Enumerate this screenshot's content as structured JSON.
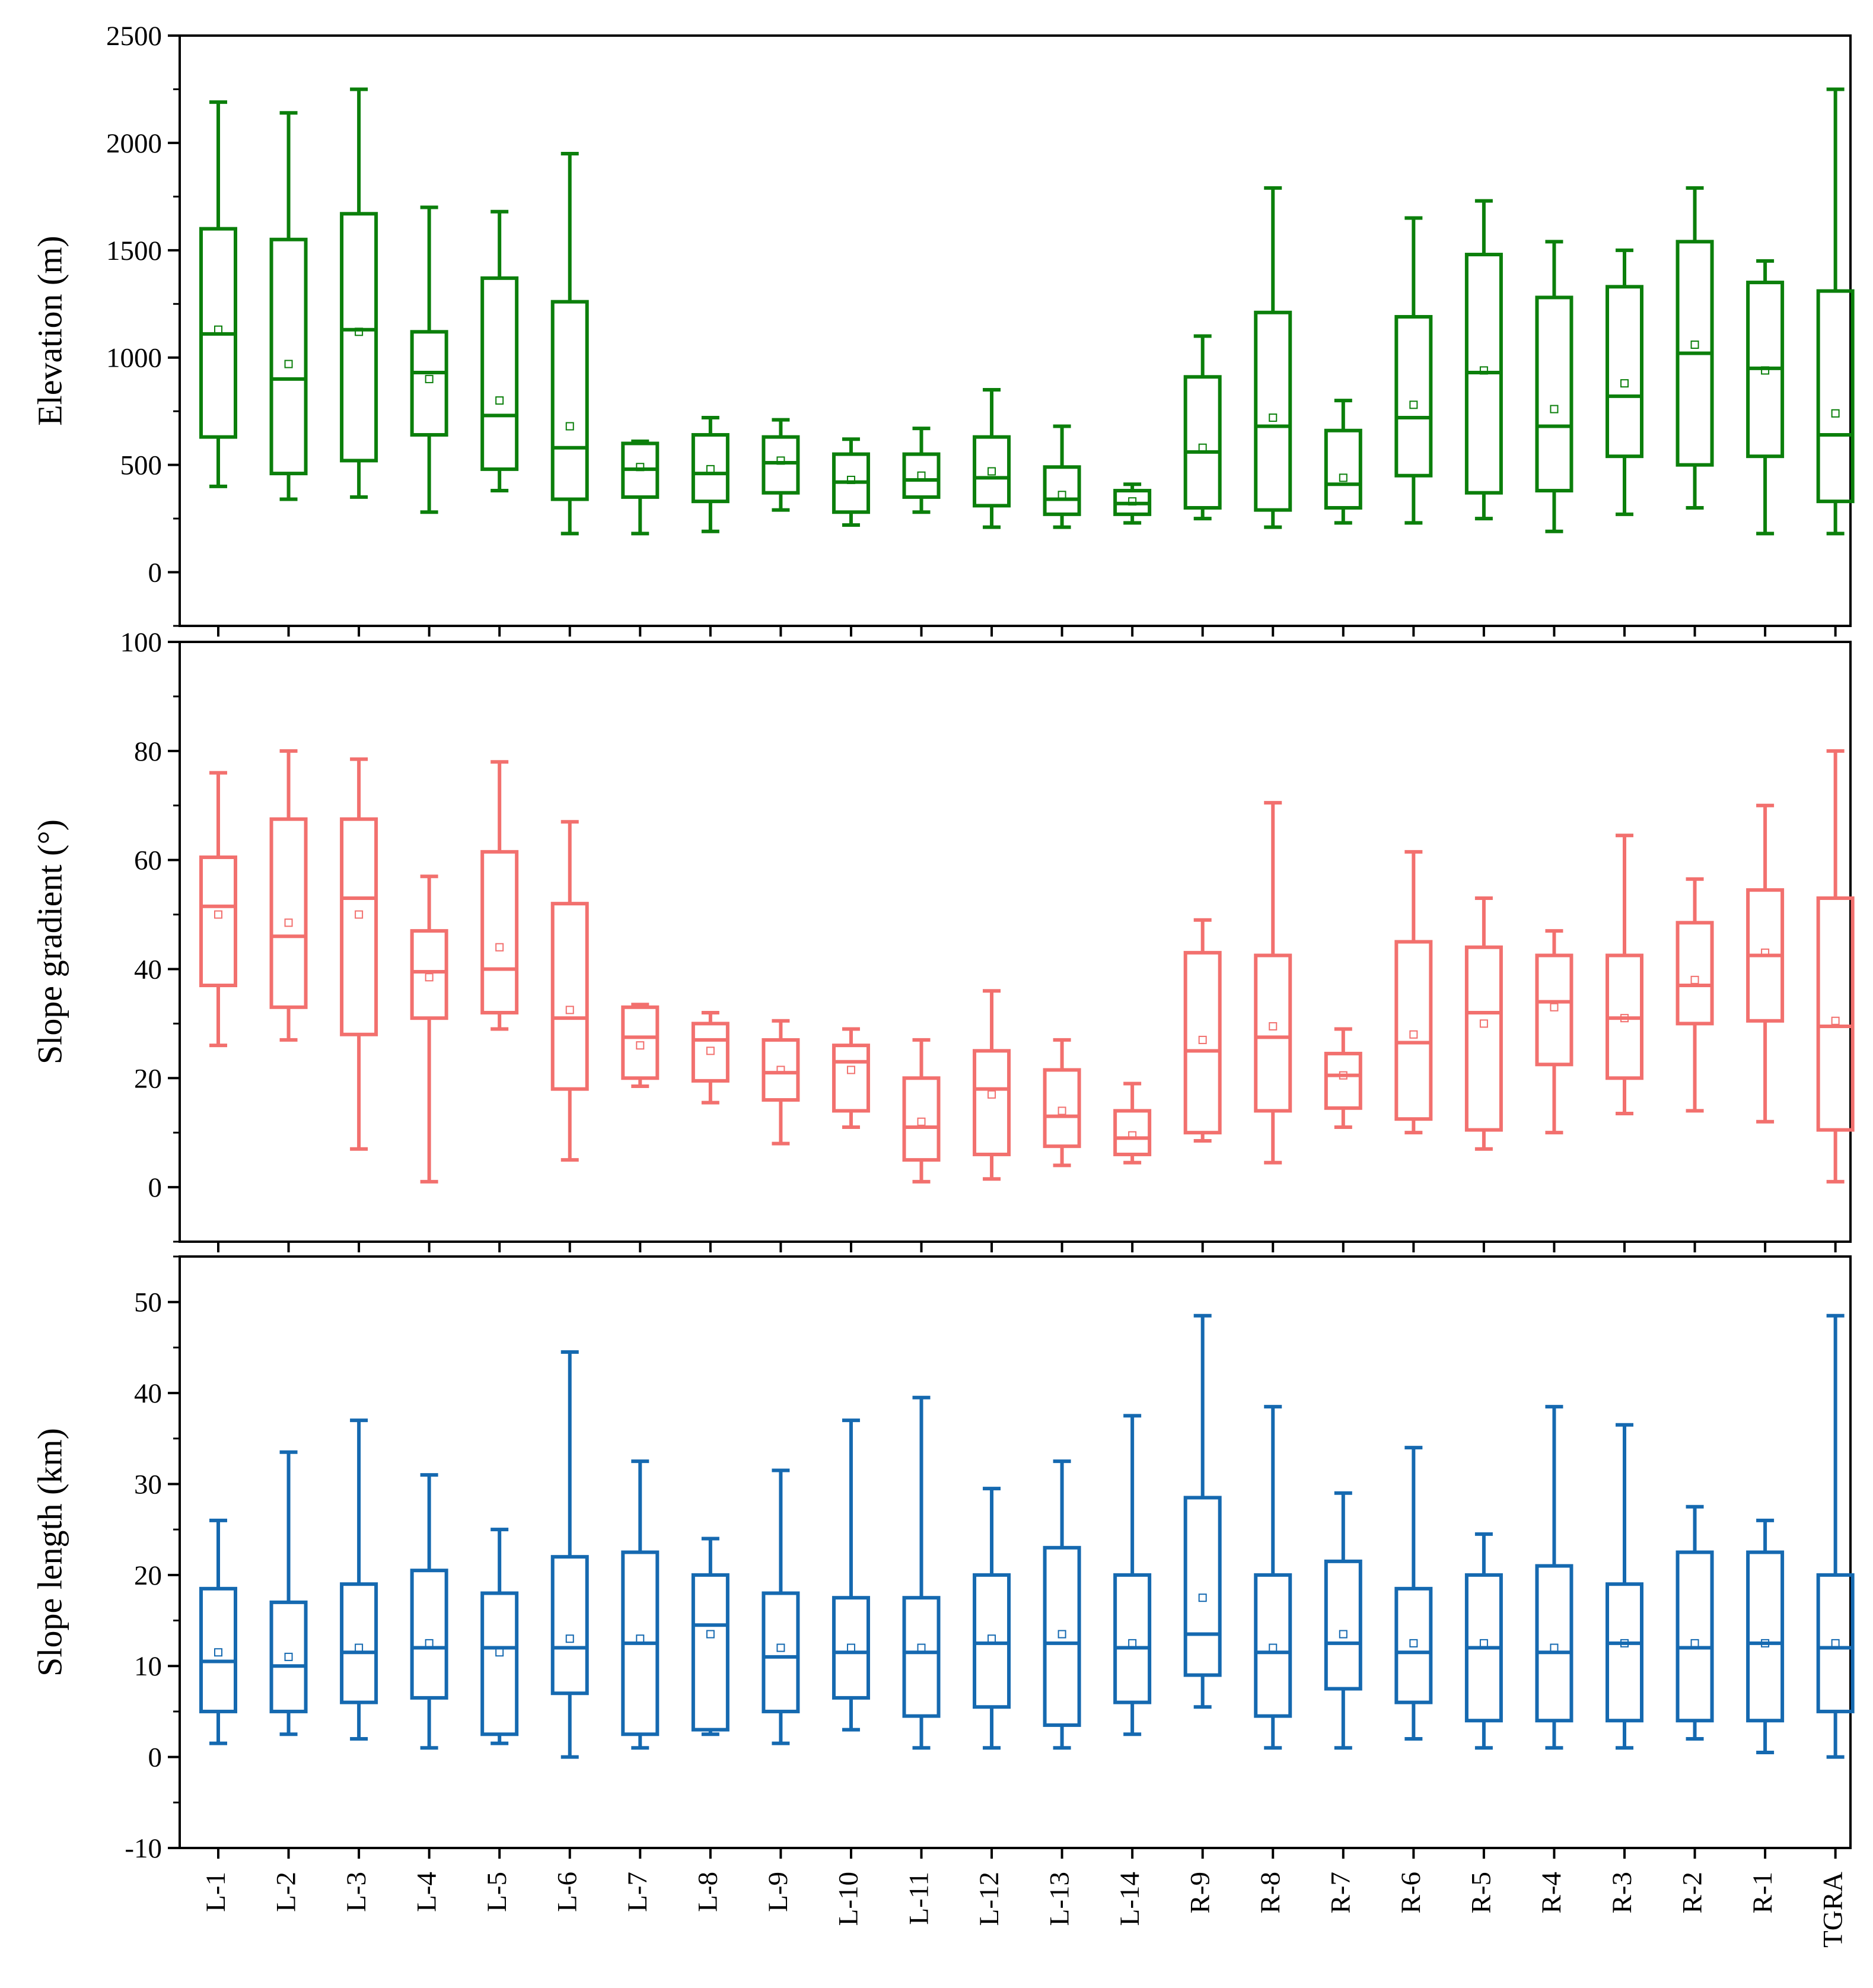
{
  "chart_data": [
    {
      "type": "box",
      "ylabel": "Elevation (m)",
      "ylim": [
        -250,
        2500
      ],
      "yticks": [
        0,
        500,
        1000,
        1500,
        2000,
        2500
      ],
      "color": "#0b7f0b",
      "categories": [
        "L-1",
        "L-2",
        "L-3",
        "L-4",
        "L-5",
        "L-6",
        "L-7",
        "L-8",
        "L-9",
        "L-10",
        "L-11",
        "L-12",
        "L-13",
        "L-14",
        "R-9",
        "R-8",
        "R-7",
        "R-6",
        "R-5",
        "R-4",
        "R-3",
        "R-2",
        "R-1",
        "TGRA"
      ],
      "boxes": [
        {
          "min": 400,
          "q1": 630,
          "median": 1110,
          "q3": 1600,
          "max": 2190,
          "mean": 1130
        },
        {
          "min": 340,
          "q1": 460,
          "median": 900,
          "q3": 1550,
          "max": 2140,
          "mean": 970
        },
        {
          "min": 350,
          "q1": 520,
          "median": 1130,
          "q3": 1670,
          "max": 2250,
          "mean": 1120
        },
        {
          "min": 280,
          "q1": 640,
          "median": 930,
          "q3": 1120,
          "max": 1700,
          "mean": 900
        },
        {
          "min": 380,
          "q1": 480,
          "median": 730,
          "q3": 1370,
          "max": 1680,
          "mean": 800
        },
        {
          "min": 180,
          "q1": 340,
          "median": 580,
          "q3": 1260,
          "max": 1950,
          "mean": 680
        },
        {
          "min": 180,
          "q1": 350,
          "median": 480,
          "q3": 600,
          "max": 610,
          "mean": 490
        },
        {
          "min": 190,
          "q1": 330,
          "median": 460,
          "q3": 640,
          "max": 720,
          "mean": 480
        },
        {
          "min": 290,
          "q1": 370,
          "median": 510,
          "q3": 630,
          "max": 710,
          "mean": 520
        },
        {
          "min": 220,
          "q1": 280,
          "median": 420,
          "q3": 550,
          "max": 620,
          "mean": 430
        },
        {
          "min": 280,
          "q1": 350,
          "median": 430,
          "q3": 550,
          "max": 670,
          "mean": 450
        },
        {
          "min": 210,
          "q1": 310,
          "median": 440,
          "q3": 630,
          "max": 850,
          "mean": 470
        },
        {
          "min": 210,
          "q1": 270,
          "median": 340,
          "q3": 490,
          "max": 680,
          "mean": 360
        },
        {
          "min": 230,
          "q1": 270,
          "median": 320,
          "q3": 380,
          "max": 410,
          "mean": 330
        },
        {
          "min": 250,
          "q1": 300,
          "median": 560,
          "q3": 910,
          "max": 1100,
          "mean": 580
        },
        {
          "min": 210,
          "q1": 290,
          "median": 680,
          "q3": 1210,
          "max": 1790,
          "mean": 720
        },
        {
          "min": 230,
          "q1": 300,
          "median": 410,
          "q3": 660,
          "max": 800,
          "mean": 440
        },
        {
          "min": 230,
          "q1": 450,
          "median": 720,
          "q3": 1190,
          "max": 1650,
          "mean": 780
        },
        {
          "min": 250,
          "q1": 370,
          "median": 930,
          "q3": 1480,
          "max": 1730,
          "mean": 940
        },
        {
          "min": 190,
          "q1": 380,
          "median": 680,
          "q3": 1280,
          "max": 1540,
          "mean": 760
        },
        {
          "min": 270,
          "q1": 540,
          "median": 820,
          "q3": 1330,
          "max": 1500,
          "mean": 880
        },
        {
          "min": 300,
          "q1": 500,
          "median": 1020,
          "q3": 1540,
          "max": 1790,
          "mean": 1060
        },
        {
          "min": 180,
          "q1": 540,
          "median": 950,
          "q3": 1350,
          "max": 1450,
          "mean": 940
        },
        {
          "min": 180,
          "q1": 330,
          "median": 640,
          "q3": 1310,
          "max": 2250,
          "mean": 740
        }
      ]
    },
    {
      "type": "box",
      "ylabel": "Slope gradient (°)",
      "ylim": [
        -10,
        100
      ],
      "yticks": [
        0,
        20,
        40,
        60,
        80,
        100
      ],
      "color": "#f2706e",
      "categories": [
        "L-1",
        "L-2",
        "L-3",
        "L-4",
        "L-5",
        "L-6",
        "L-7",
        "L-8",
        "L-9",
        "L-10",
        "L-11",
        "L-12",
        "L-13",
        "L-14",
        "R-9",
        "R-8",
        "R-7",
        "R-6",
        "R-5",
        "R-4",
        "R-3",
        "R-2",
        "R-1",
        "TGRA"
      ],
      "boxes": [
        {
          "min": 26,
          "q1": 37,
          "median": 51.5,
          "q3": 60.5,
          "max": 76,
          "mean": 50
        },
        {
          "min": 27,
          "q1": 33,
          "median": 46,
          "q3": 67.5,
          "max": 80,
          "mean": 48.5
        },
        {
          "min": 7,
          "q1": 28,
          "median": 53,
          "q3": 67.5,
          "max": 78.5,
          "mean": 50
        },
        {
          "min": 1,
          "q1": 31,
          "median": 39.5,
          "q3": 47,
          "max": 57,
          "mean": 38.5
        },
        {
          "min": 29,
          "q1": 32,
          "median": 40,
          "q3": 61.5,
          "max": 78,
          "mean": 44
        },
        {
          "min": 5,
          "q1": 18,
          "median": 31,
          "q3": 52,
          "max": 67,
          "mean": 32.5
        },
        {
          "min": 18.5,
          "q1": 20,
          "median": 27.5,
          "q3": 33,
          "max": 33.5,
          "mean": 26
        },
        {
          "min": 15.5,
          "q1": 19.5,
          "median": 27,
          "q3": 30,
          "max": 32,
          "mean": 25
        },
        {
          "min": 8,
          "q1": 16,
          "median": 21,
          "q3": 27,
          "max": 30.5,
          "mean": 21.5
        },
        {
          "min": 11,
          "q1": 14,
          "median": 23,
          "q3": 26,
          "max": 29,
          "mean": 21.5
        },
        {
          "min": 1,
          "q1": 5,
          "median": 11,
          "q3": 20,
          "max": 27,
          "mean": 12
        },
        {
          "min": 1.5,
          "q1": 6,
          "median": 18,
          "q3": 25,
          "max": 36,
          "mean": 17
        },
        {
          "min": 4,
          "q1": 7.5,
          "median": 13,
          "q3": 21.5,
          "max": 27,
          "mean": 14
        },
        {
          "min": 4.5,
          "q1": 6,
          "median": 9,
          "q3": 14,
          "max": 19,
          "mean": 9.5
        },
        {
          "min": 8.5,
          "q1": 10,
          "median": 25,
          "q3": 43,
          "max": 49,
          "mean": 27
        },
        {
          "min": 4.5,
          "q1": 14,
          "median": 27.5,
          "q3": 42.5,
          "max": 70.5,
          "mean": 29.5
        },
        {
          "min": 11,
          "q1": 14.5,
          "median": 20.5,
          "q3": 24.5,
          "max": 29,
          "mean": 20.5
        },
        {
          "min": 10,
          "q1": 12.5,
          "median": 26.5,
          "q3": 45,
          "max": 61.5,
          "mean": 28
        },
        {
          "min": 7,
          "q1": 10.5,
          "median": 32,
          "q3": 44,
          "max": 53,
          "mean": 30
        },
        {
          "min": 10,
          "q1": 22.5,
          "median": 34,
          "q3": 42.5,
          "max": 47,
          "mean": 33
        },
        {
          "min": 13.5,
          "q1": 20,
          "median": 31,
          "q3": 42.5,
          "max": 64.5,
          "mean": 31
        },
        {
          "min": 14,
          "q1": 30,
          "median": 37,
          "q3": 48.5,
          "max": 56.5,
          "mean": 38
        },
        {
          "min": 12,
          "q1": 30.5,
          "median": 42.5,
          "q3": 54.5,
          "max": 70,
          "mean": 43
        },
        {
          "min": 1,
          "q1": 10.5,
          "median": 29.5,
          "q3": 53,
          "max": 80,
          "mean": 30.5
        }
      ]
    },
    {
      "type": "box",
      "ylabel": "Slope length (km)",
      "ylim": [
        -10,
        55
      ],
      "yticks": [
        -10,
        0,
        10,
        20,
        30,
        40,
        50
      ],
      "color": "#1569b0",
      "categories": [
        "L-1",
        "L-2",
        "L-3",
        "L-4",
        "L-5",
        "L-6",
        "L-7",
        "L-8",
        "L-9",
        "L-10",
        "L-11",
        "L-12",
        "L-13",
        "L-14",
        "R-9",
        "R-8",
        "R-7",
        "R-6",
        "R-5",
        "R-4",
        "R-3",
        "R-2",
        "R-1",
        "TGRA"
      ],
      "boxes": [
        {
          "min": 1.5,
          "q1": 5,
          "median": 10.5,
          "q3": 18.5,
          "max": 26,
          "mean": 11.5
        },
        {
          "min": 2.5,
          "q1": 5,
          "median": 10,
          "q3": 17,
          "max": 33.5,
          "mean": 11
        },
        {
          "min": 2,
          "q1": 6,
          "median": 11.5,
          "q3": 19,
          "max": 37,
          "mean": 12
        },
        {
          "min": 1,
          "q1": 6.5,
          "median": 12,
          "q3": 20.5,
          "max": 31,
          "mean": 12.5
        },
        {
          "min": 1.5,
          "q1": 2.5,
          "median": 12,
          "q3": 18,
          "max": 25,
          "mean": 11.5
        },
        {
          "min": 0,
          "q1": 7,
          "median": 12,
          "q3": 22,
          "max": 44.5,
          "mean": 13
        },
        {
          "min": 1,
          "q1": 2.5,
          "median": 12.5,
          "q3": 22.5,
          "max": 32.5,
          "mean": 13
        },
        {
          "min": 2.5,
          "q1": 3,
          "median": 14.5,
          "q3": 20,
          "max": 24,
          "mean": 13.5
        },
        {
          "min": 1.5,
          "q1": 5,
          "median": 11,
          "q3": 18,
          "max": 31.5,
          "mean": 12
        },
        {
          "min": 3,
          "q1": 6.5,
          "median": 11.5,
          "q3": 17.5,
          "max": 37,
          "mean": 12
        },
        {
          "min": 1,
          "q1": 4.5,
          "median": 11.5,
          "q3": 17.5,
          "max": 39.5,
          "mean": 12
        },
        {
          "min": 1,
          "q1": 5.5,
          "median": 12.5,
          "q3": 20,
          "max": 29.5,
          "mean": 13
        },
        {
          "min": 1,
          "q1": 3.5,
          "median": 12.5,
          "q3": 23,
          "max": 32.5,
          "mean": 13.5
        },
        {
          "min": 2.5,
          "q1": 6,
          "median": 12,
          "q3": 20,
          "max": 37.5,
          "mean": 12.5
        },
        {
          "min": 5.5,
          "q1": 9,
          "median": 13.5,
          "q3": 28.5,
          "max": 48.5,
          "mean": 17.5
        },
        {
          "min": 1,
          "q1": 4.5,
          "median": 11.5,
          "q3": 20,
          "max": 38.5,
          "mean": 12
        },
        {
          "min": 1,
          "q1": 7.5,
          "median": 12.5,
          "q3": 21.5,
          "max": 29,
          "mean": 13.5
        },
        {
          "min": 2,
          "q1": 6,
          "median": 11.5,
          "q3": 18.5,
          "max": 34,
          "mean": 12.5
        },
        {
          "min": 1,
          "q1": 4,
          "median": 12,
          "q3": 20,
          "max": 24.5,
          "mean": 12.5
        },
        {
          "min": 1,
          "q1": 4,
          "median": 11.5,
          "q3": 21,
          "max": 38.5,
          "mean": 12
        },
        {
          "min": 1,
          "q1": 4,
          "median": 12.5,
          "q3": 19,
          "max": 36.5,
          "mean": 12.5
        },
        {
          "min": 2,
          "q1": 4,
          "median": 12,
          "q3": 22.5,
          "max": 27.5,
          "mean": 12.5
        },
        {
          "min": 0.5,
          "q1": 4,
          "median": 12.5,
          "q3": 22.5,
          "max": 26,
          "mean": 12.5
        },
        {
          "min": 0,
          "q1": 5,
          "median": 12,
          "q3": 20,
          "max": 48.5,
          "mean": 12.5
        }
      ]
    }
  ]
}
